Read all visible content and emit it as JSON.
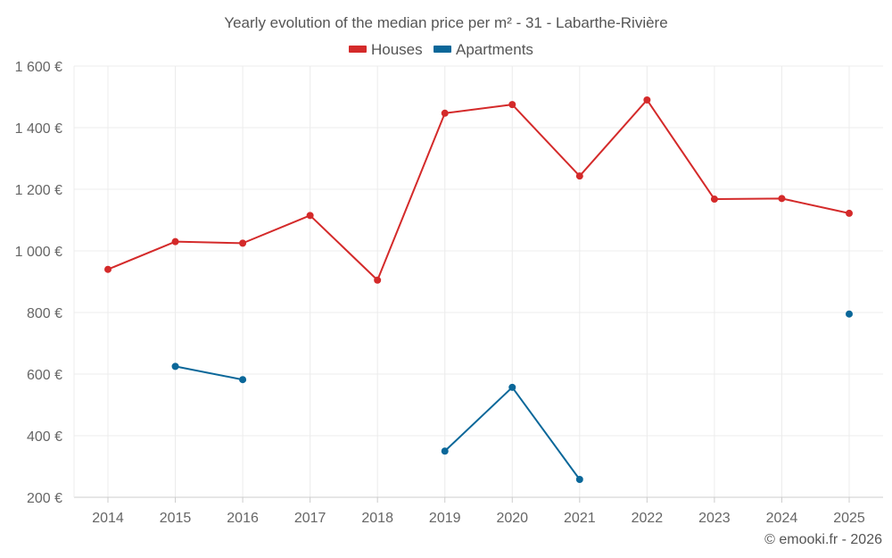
{
  "chart_data": {
    "type": "line",
    "title": "Yearly evolution of the median price per m² - 31 - Labarthe-Rivière",
    "categories": [
      "2014",
      "2015",
      "2016",
      "2017",
      "2018",
      "2019",
      "2020",
      "2021",
      "2022",
      "2023",
      "2024",
      "2025"
    ],
    "y_ticks": [
      "200 €",
      "400 €",
      "600 €",
      "800 €",
      "1 000 €",
      "1 200 €",
      "1 400 €",
      "1 600 €"
    ],
    "y_tick_values": [
      200,
      400,
      600,
      800,
      1000,
      1200,
      1400,
      1600
    ],
    "ylim": [
      200,
      1600
    ],
    "grid": true,
    "legend_position": "top-center",
    "series": [
      {
        "name": "Houses",
        "color": "#d42a2a",
        "values": [
          940,
          1030,
          1025,
          1115,
          905,
          1447,
          1475,
          1243,
          1490,
          1168,
          1170,
          1122
        ]
      },
      {
        "name": "Apartments",
        "color": "#0a6799",
        "values": [
          null,
          625,
          582,
          null,
          null,
          350,
          557,
          258,
          null,
          null,
          null,
          795
        ]
      }
    ]
  },
  "footer": {
    "copyright": "© emooki.fr - 2026"
  }
}
